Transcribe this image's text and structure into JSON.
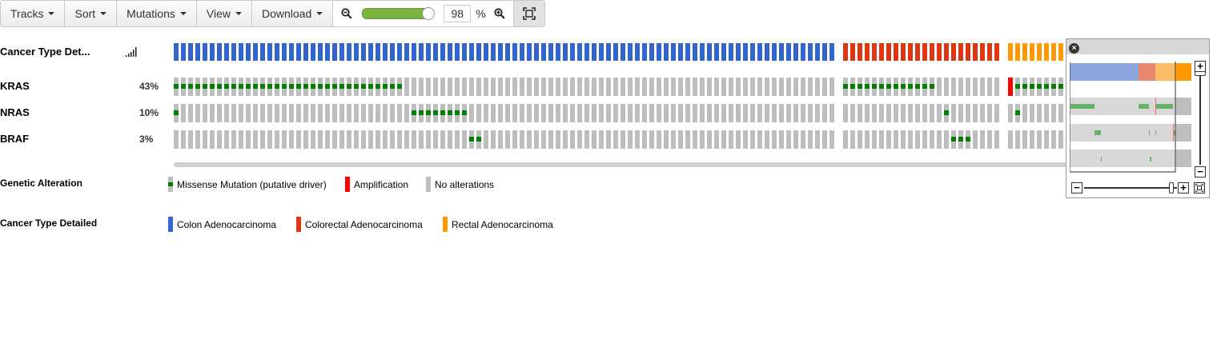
{
  "toolbar": {
    "tracks_label": "Tracks",
    "sort_label": "Sort",
    "mutations_label": "Mutations",
    "view_label": "View",
    "download_label": "Download",
    "zoom_value": "98",
    "zoom_unit": "%",
    "zoom_slider_level_percent": 100
  },
  "clinical_track": {
    "label": "Cancer Type Det..."
  },
  "genes": [
    {
      "name": "KRAS",
      "percent": "43%"
    },
    {
      "name": "NRAS",
      "percent": "10%"
    },
    {
      "name": "BRAF",
      "percent": "3%"
    }
  ],
  "legend": {
    "genetic_title": "Genetic Alteration",
    "genetic_items": [
      {
        "label": "Missense Mutation (putative driver)",
        "color": "#008000"
      },
      {
        "label": "Amplification",
        "color": "#ff0000"
      },
      {
        "label": "No alterations",
        "color": "#bebebe"
      }
    ],
    "cancer_title": "Cancer Type Detailed",
    "cancer_items": [
      {
        "label": "Colon Adenocarcinoma",
        "color": "#3366cc"
      },
      {
        "label": "Colorectal Adenocarcinoma",
        "color": "#dc3912"
      },
      {
        "label": "Rectal Adenocarcinoma",
        "color": "#ff9900"
      }
    ]
  },
  "colors": {
    "colon": "#3366cc",
    "colorectal": "#dc3912",
    "rectal": "#ff9900",
    "no_alteration": "#bebebe",
    "missense": "#008000",
    "amplification": "#ff0000"
  }
}
